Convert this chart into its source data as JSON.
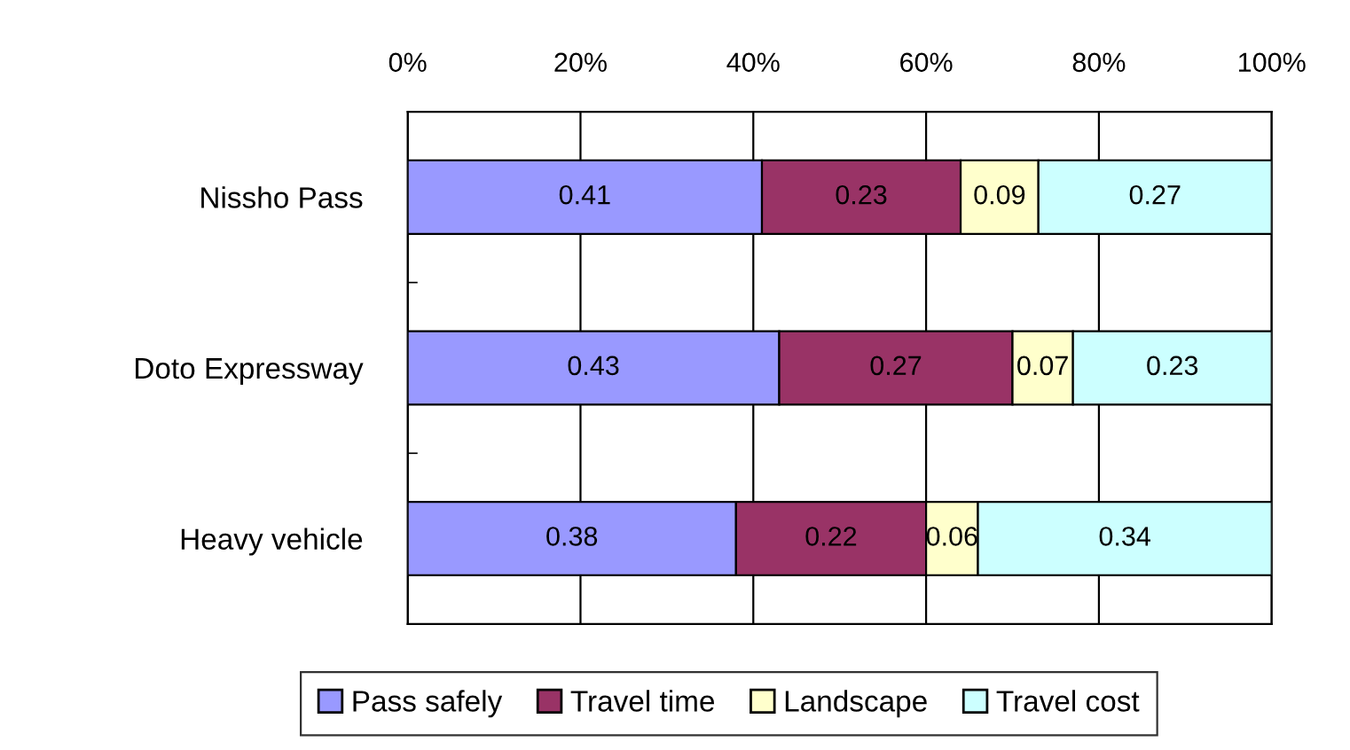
{
  "chart_data": {
    "type": "bar",
    "orientation": "horizontal",
    "stacked": true,
    "categories": [
      "Nissho Pass",
      "Doto Expressway",
      "Heavy vehicle"
    ],
    "series": [
      {
        "name": "Pass safely",
        "color": "#9999ff",
        "values": [
          0.41,
          0.43,
          0.38
        ]
      },
      {
        "name": "Travel time",
        "color": "#993366",
        "values": [
          0.23,
          0.27,
          0.22
        ]
      },
      {
        "name": "Landscape",
        "color": "#ffffcc",
        "values": [
          0.09,
          0.07,
          0.06
        ]
      },
      {
        "name": "Travel cost",
        "color": "#ccffff",
        "values": [
          0.27,
          0.23,
          0.34
        ]
      }
    ],
    "xlim": [
      0,
      1
    ],
    "xticks": [
      {
        "value": 0,
        "label": "0%"
      },
      {
        "value": 0.2,
        "label": "20%"
      },
      {
        "value": 0.4,
        "label": "40%"
      },
      {
        "value": 0.6,
        "label": "60%"
      },
      {
        "value": 0.8,
        "label": "80%"
      },
      {
        "value": 1,
        "label": "100%"
      }
    ],
    "grid": "x",
    "legend": "bottom",
    "data_labels": true
  }
}
